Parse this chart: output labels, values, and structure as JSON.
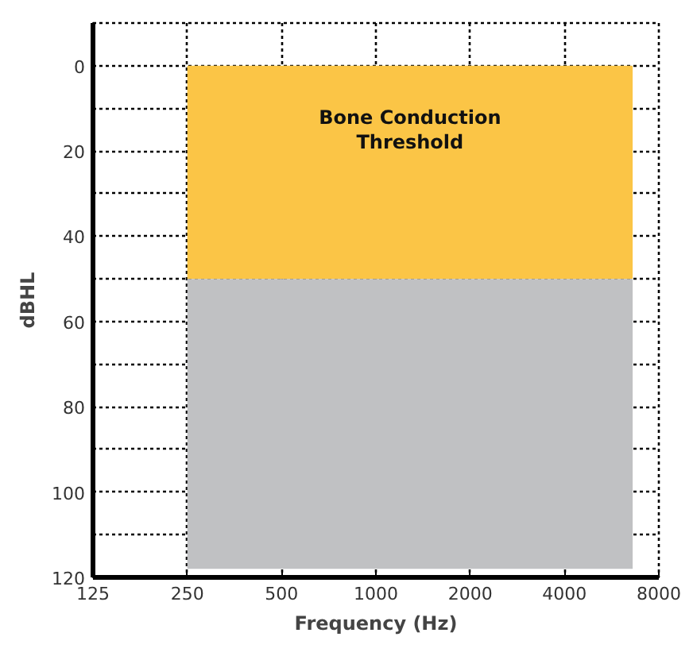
{
  "chart_data": {
    "type": "area",
    "stacked": true,
    "log": "x",
    "xlabel": "Frequency (Hz)",
    "ylabel": "dBHL",
    "x": [
      250,
      6600
    ],
    "series": [
      {
        "color": "#fbc546",
        "values": [
          50,
          50
        ]
      },
      {
        "color": "#c0c1c3",
        "values": [
          68,
          68
        ]
      }
    ],
    "xlim": [
      125,
      8000
    ],
    "xticks": [
      125,
      250,
      500,
      1000,
      2000,
      4000,
      8000
    ],
    "ylim": [
      120,
      -10
    ],
    "yticks": [
      0,
      {
        "value": 10,
        "label": null
      },
      20,
      {
        "value": 30,
        "label": null
      },
      40,
      {
        "value": 50,
        "label": null
      },
      60,
      {
        "value": 70,
        "label": null
      },
      80,
      {
        "value": 90,
        "label": null
      },
      100,
      {
        "value": 110,
        "label": null
      },
      120
    ],
    "grid": true,
    "line_style": "dotted",
    "annotations": [
      "Bone Conduction\nThreshold"
    ]
  }
}
